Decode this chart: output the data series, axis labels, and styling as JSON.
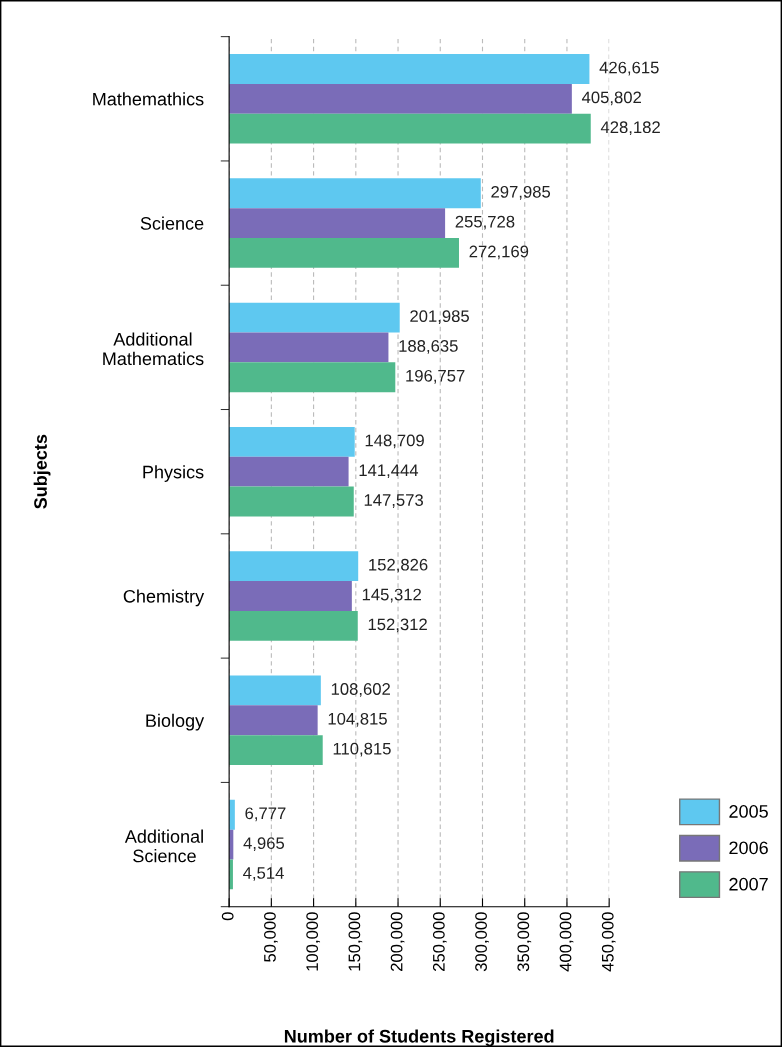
{
  "chart_data": {
    "type": "bar",
    "orientation": "horizontal",
    "categories": [
      "Mathemathics",
      "Science",
      "Additional\nMathematics",
      "Physics",
      "Chemistry",
      "Biology",
      "Additional\nScience"
    ],
    "series": [
      {
        "name": "2005",
        "color": "#5ec8f0",
        "values": [
          426615,
          297985,
          201985,
          148709,
          152826,
          108602,
          6777
        ],
        "value_labels": [
          "426,615",
          "297,985",
          "201,985",
          "148,709",
          "152,826",
          "108,602",
          "6,777"
        ]
      },
      {
        "name": "2006",
        "color": "#7a6cb8",
        "values": [
          405802,
          255728,
          188635,
          141444,
          145312,
          104815,
          4965
        ],
        "value_labels": [
          "405,802",
          "255,728",
          "188,635",
          "141,444",
          "145,312",
          "104,815",
          "4,965"
        ]
      },
      {
        "name": "2007",
        "color": "#50b98c",
        "values": [
          428182,
          272169,
          196757,
          147573,
          152312,
          110815,
          4514
        ],
        "value_labels": [
          "428,182",
          "272,169",
          "196,757",
          "147,573",
          "152,312",
          "110,815",
          "4,514"
        ]
      }
    ],
    "xlabel": "Number of Students Registered",
    "ylabel": "Subjects",
    "xlim": [
      0,
      450000
    ],
    "xticks": [
      0,
      {
        "value": 50000,
        "label": "50,000"
      },
      {
        "value": 100000,
        "label": "100,000"
      },
      {
        "value": 150000,
        "label": "150,000"
      },
      {
        "value": 200000,
        "label": "200,000"
      },
      {
        "value": 250000,
        "label": "250,000"
      },
      {
        "value": 300000,
        "label": "300,000"
      },
      {
        "value": 350000,
        "label": "350,000"
      },
      {
        "value": 400000,
        "label": "400,000"
      },
      {
        "value": 450000,
        "label": "450,000"
      }
    ],
    "grid": "x",
    "legend": "bottom right"
  }
}
